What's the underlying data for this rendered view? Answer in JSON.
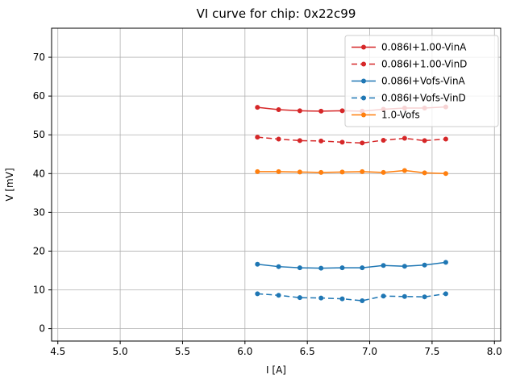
{
  "chart_data": {
    "type": "line",
    "title": "VI curve for chip: 0x22c99",
    "xlabel": "I [A]",
    "ylabel": "V [mV]",
    "xlim": [
      4.45,
      8.05
    ],
    "ylim": [
      -3.2,
      77.5
    ],
    "xticks": [
      4.5,
      5.0,
      5.5,
      6.0,
      6.5,
      7.0,
      7.5,
      8.0
    ],
    "yticks": [
      0,
      10,
      20,
      30,
      40,
      50,
      60,
      70
    ],
    "grid": true,
    "grid_color": "#b0b0b0",
    "legend_position": "upper right",
    "x": [
      6.1,
      6.27,
      6.44,
      6.61,
      6.78,
      6.94,
      7.11,
      7.28,
      7.44,
      7.61
    ],
    "series": [
      {
        "name": "0.086I+1.00-VinA",
        "color": "#d62728",
        "style": "solid",
        "marker": "circle",
        "values": [
          57.1,
          56.5,
          56.2,
          56.1,
          56.2,
          56.1,
          56.6,
          56.9,
          56.9,
          57.2
        ]
      },
      {
        "name": "0.086I+1.00-VinD",
        "color": "#d62728",
        "style": "dashed",
        "marker": "circle",
        "values": [
          49.4,
          48.9,
          48.5,
          48.4,
          48.1,
          47.9,
          48.6,
          49.1,
          48.5,
          48.9
        ]
      },
      {
        "name": "0.086I+Vofs-VinA",
        "color": "#1f77b4",
        "style": "solid",
        "marker": "circle",
        "values": [
          16.6,
          16.0,
          15.7,
          15.6,
          15.7,
          15.7,
          16.3,
          16.1,
          16.4,
          17.1
        ]
      },
      {
        "name": "0.086I+Vofs-VinD",
        "color": "#1f77b4",
        "style": "dashed",
        "marker": "circle",
        "values": [
          9.0,
          8.6,
          8.0,
          7.9,
          7.7,
          7.2,
          8.4,
          8.3,
          8.2,
          9.0
        ]
      },
      {
        "name": "1.0-Vofs",
        "color": "#ff7f0e",
        "style": "solid",
        "marker": "circle",
        "values": [
          40.5,
          40.5,
          40.4,
          40.3,
          40.4,
          40.5,
          40.3,
          40.8,
          40.2,
          40.0
        ]
      }
    ]
  }
}
